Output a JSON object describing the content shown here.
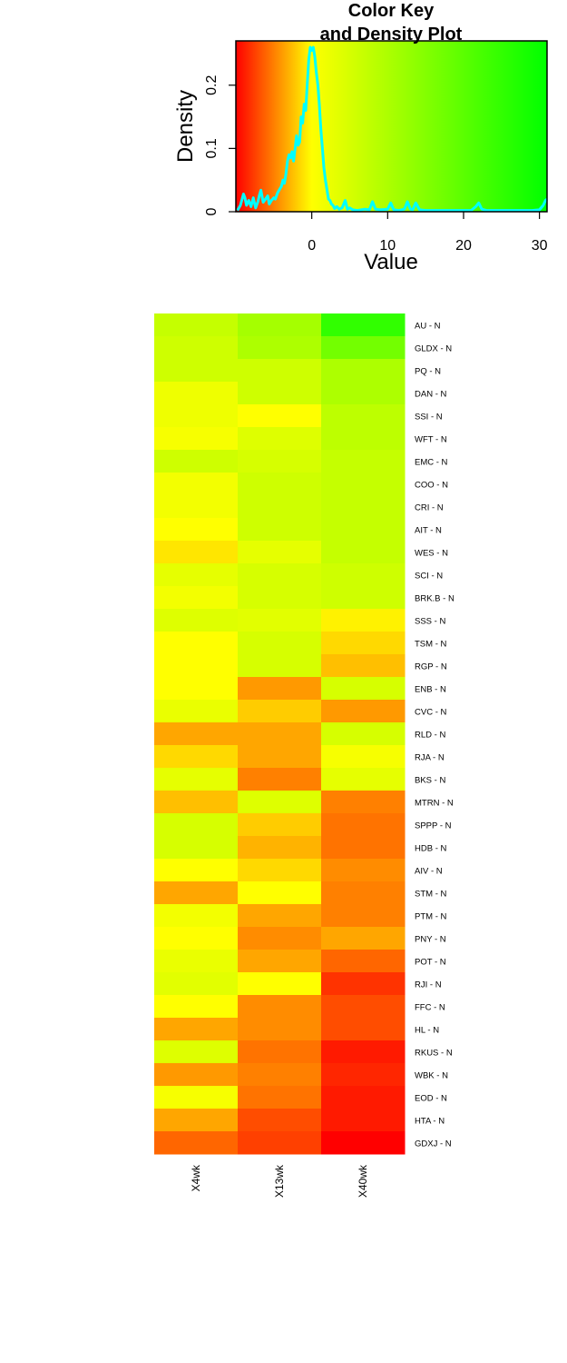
{
  "chart_data": [
    {
      "type": "line",
      "title": [
        "Color Key",
        "and Density Plot"
      ],
      "xlabel": "Value",
      "ylabel": "Density",
      "xlim": [
        -10,
        31
      ],
      "ylim": [
        0,
        0.27
      ],
      "x_ticks": [
        0,
        10,
        20,
        30
      ],
      "y_ticks": [
        0,
        0.1,
        0.2
      ],
      "y_tick_labels": [
        "0",
        "0.1",
        "0.2"
      ],
      "color_scale": [
        "#ff0000",
        "#ffff00",
        "#00ff00"
      ],
      "color_midpoint": 0,
      "density_color": "#00ffff",
      "density": {
        "x": [
          -9.8,
          -9.4,
          -9.0,
          -8.8,
          -8.6,
          -8.3,
          -8.0,
          -7.7,
          -7.4,
          -7.1,
          -6.9,
          -6.7,
          -6.4,
          -6.1,
          -5.8,
          -5.6,
          -5.3,
          -5.0,
          -4.8,
          -4.5,
          -4.2,
          -4.0,
          -3.8,
          -3.6,
          -3.4,
          -3.2,
          -3.0,
          -2.8,
          -2.6,
          -2.4,
          -2.2,
          -2.0,
          -1.8,
          -1.6,
          -1.4,
          -1.2,
          -1.0,
          -0.8,
          -0.6,
          -0.4,
          -0.2,
          0.0,
          0.2,
          0.4,
          0.6,
          0.8,
          1.0,
          1.2,
          1.4,
          1.6,
          1.8,
          2.0,
          2.2,
          2.4,
          2.6,
          2.8,
          3.0,
          3.3,
          3.6,
          4.0,
          4.4,
          4.7,
          5.0,
          5.4,
          6.0,
          7.0,
          7.6,
          8.0,
          8.4,
          9.0,
          10.0,
          10.4,
          10.8,
          11.5,
          12.2,
          12.6,
          13.0,
          13.3,
          13.7,
          14.2,
          15.0,
          17.0,
          19.0,
          21.0,
          21.6,
          22.0,
          22.4,
          23.0,
          25.0,
          27.0,
          29.0,
          30.0,
          30.5,
          30.8,
          31.0
        ],
        "y": [
          0.002,
          0.01,
          0.028,
          0.022,
          0.01,
          0.018,
          0.008,
          0.022,
          0.006,
          0.016,
          0.026,
          0.034,
          0.015,
          0.02,
          0.025,
          0.012,
          0.018,
          0.022,
          0.02,
          0.03,
          0.036,
          0.04,
          0.05,
          0.045,
          0.06,
          0.08,
          0.09,
          0.085,
          0.095,
          0.08,
          0.1,
          0.12,
          0.105,
          0.11,
          0.15,
          0.14,
          0.17,
          0.16,
          0.2,
          0.24,
          0.26,
          0.255,
          0.26,
          0.245,
          0.22,
          0.2,
          0.17,
          0.13,
          0.1,
          0.07,
          0.05,
          0.035,
          0.02,
          0.018,
          0.012,
          0.01,
          0.005,
          0.008,
          0.004,
          0.006,
          0.018,
          0.004,
          0.006,
          0.003,
          0.002,
          0.004,
          0.003,
          0.016,
          0.004,
          0.003,
          0.004,
          0.014,
          0.003,
          0.002,
          0.004,
          0.016,
          0.004,
          0.003,
          0.014,
          0.003,
          0.002,
          0.002,
          0.002,
          0.002,
          0.008,
          0.014,
          0.004,
          0.002,
          0.002,
          0.002,
          0.002,
          0.003,
          0.01,
          0.018,
          0.02
        ]
      }
    },
    {
      "type": "heatmap",
      "columns": [
        "X4wk",
        "X13wk",
        "X40wk"
      ],
      "rows": [
        "AU - N",
        "GLDX - N",
        "PQ - N",
        "DAN - N",
        "SSI - N",
        "WFT - N",
        "EMC - N",
        "COO - N",
        "CRI - N",
        "AIT - N",
        "WES - N",
        "SCI - N",
        "BRK.B - N",
        "SSS - N",
        "TSM - N",
        "RGP - N",
        "ENB - N",
        "CVC - N",
        "RLD - N",
        "RJA - N",
        "BKS - N",
        "MTRN - N",
        "SPPP - N",
        "HDB - N",
        "AIV - N",
        "STM - N",
        "PTM - N",
        "PNY - N",
        "POT - N",
        "RJI - N",
        "FFC - N",
        "HL - N",
        "RKUS - N",
        "WBK - N",
        "EOD - N",
        "HTA - N",
        "GDXJ - N"
      ],
      "values": [
        [
          7,
          11,
          25
        ],
        [
          6,
          10,
          17
        ],
        [
          6,
          6,
          10
        ],
        [
          2,
          6,
          10
        ],
        [
          2,
          0,
          8
        ],
        [
          1,
          4,
          8
        ],
        [
          6,
          5,
          7
        ],
        [
          1.5,
          6,
          7
        ],
        [
          1.5,
          6,
          7
        ],
        [
          0,
          6,
          7
        ],
        [
          -1,
          3,
          7
        ],
        [
          3,
          5,
          6
        ],
        [
          1.5,
          5,
          6
        ],
        [
          4,
          3.5,
          -0.5
        ],
        [
          0,
          5,
          -1.5
        ],
        [
          0,
          5,
          -2.5
        ],
        [
          0,
          -4,
          5
        ],
        [
          2.5,
          -2,
          -4
        ],
        [
          -3.5,
          -3.5,
          5
        ],
        [
          -1.5,
          -3.5,
          1
        ],
        [
          3,
          -5,
          3
        ],
        [
          -2.5,
          4,
          -5
        ],
        [
          5,
          -2,
          -5.5
        ],
        [
          5,
          -3,
          -5.5
        ],
        [
          0,
          -1.5,
          -4.5
        ],
        [
          -3.5,
          0,
          -5
        ],
        [
          1.5,
          -3.5,
          -5
        ],
        [
          0,
          -4.5,
          -3.5
        ],
        [
          2.5,
          -3.5,
          -6
        ],
        [
          3.5,
          0,
          -8
        ],
        [
          0,
          -4.5,
          -7
        ],
        [
          -3.5,
          -4.5,
          -7
        ],
        [
          4,
          -5.5,
          -9
        ],
        [
          -4,
          -5,
          -8.5
        ],
        [
          1,
          -5.5,
          -9
        ],
        [
          -3.5,
          -7,
          -9
        ],
        [
          -6,
          -7.5,
          -10
        ]
      ]
    }
  ]
}
